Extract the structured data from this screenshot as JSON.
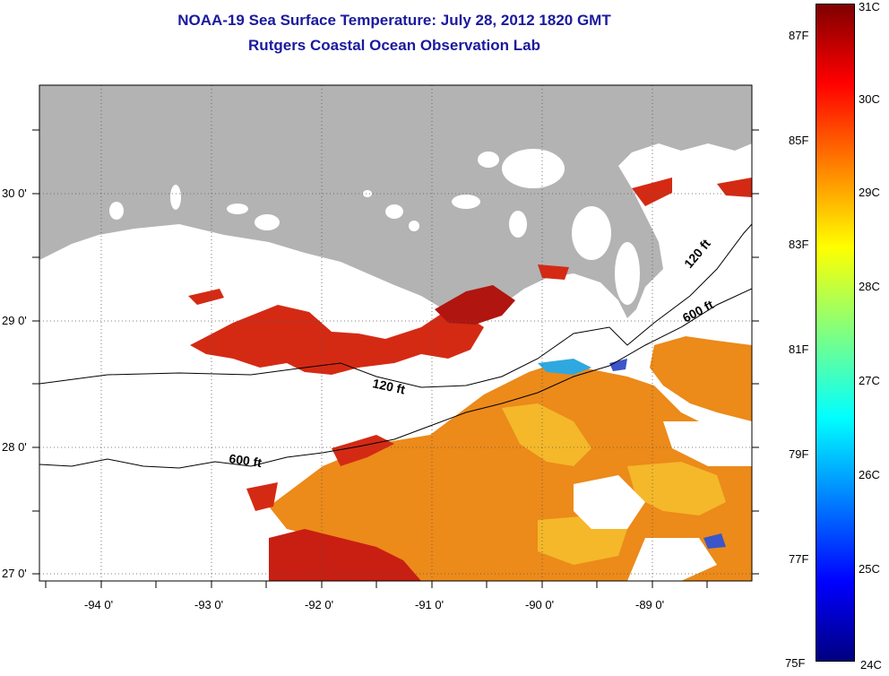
{
  "header": {
    "title_line1": "NOAA-19 Sea Surface Temperature:  July 28, 2012 1820 GMT",
    "title_line2": "Rutgers Coastal Ocean Observation Lab"
  },
  "colors": {
    "title": "#1a1a9e",
    "land": "#b3b3b3",
    "cloud": "#ffffff",
    "frame": "#000000"
  },
  "map": {
    "lon_ticks": [
      "-94 0'",
      "-93 0'",
      "-92 0'",
      "-91 0'",
      "-90 0'",
      "-89 0'"
    ],
    "lat_ticks": [
      "30 0'",
      "29 0'",
      "28 0'",
      "27 0'"
    ],
    "contours": [
      {
        "label": "120 ft"
      },
      {
        "label": "120 ft"
      },
      {
        "label": "600 ft"
      },
      {
        "label": "600 ft"
      }
    ]
  },
  "colorbar": {
    "celsius": [
      "31C",
      "30C",
      "29C",
      "28C",
      "27C",
      "26C",
      "25C",
      "24C"
    ],
    "fahrenheit": [
      "87F",
      "85F",
      "83F",
      "81F",
      "79F",
      "77F",
      "75F"
    ]
  }
}
